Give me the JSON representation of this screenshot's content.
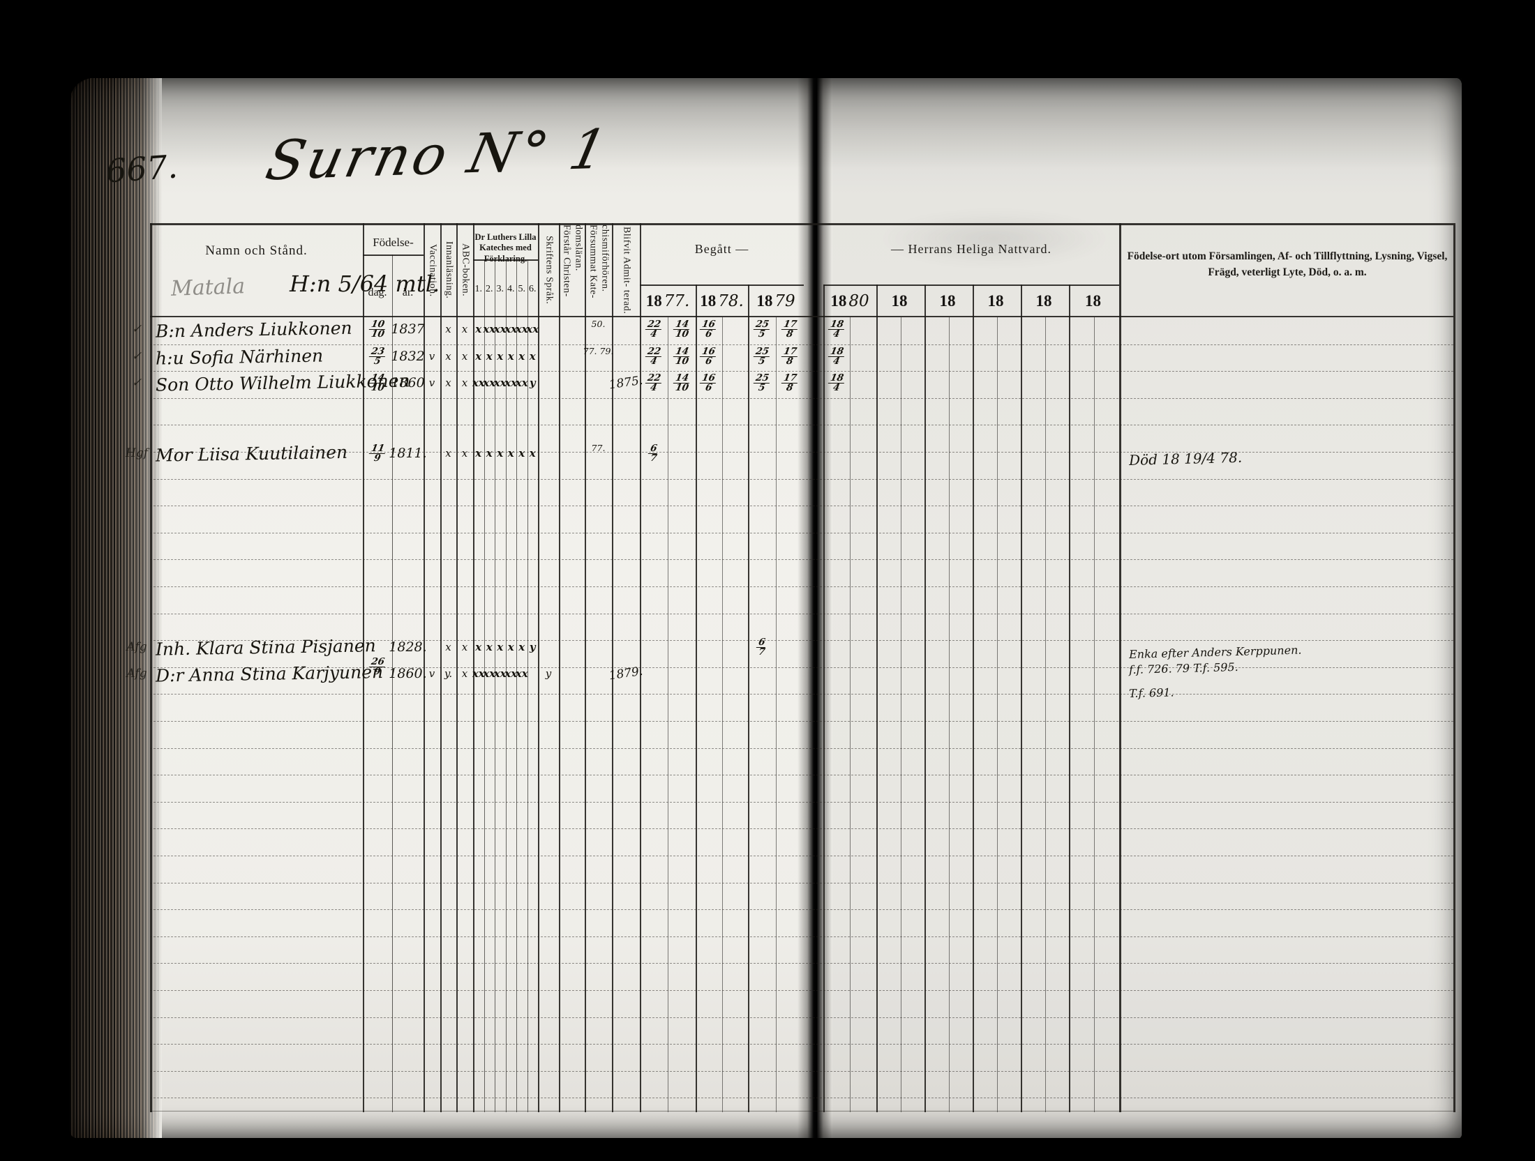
{
  "page": {
    "number": "667.",
    "title": "Surno N° 1"
  },
  "estate": {
    "pencil": "Matala",
    "ink": "H:n 5/64 mtl."
  },
  "table": {
    "headers": {
      "namn": "Namn och Stånd.",
      "fodelse": "Födelse-",
      "dag": "dag.",
      "ar": "år.",
      "vaccination": "Vaccination.",
      "innanlasning": "Innanläsning.",
      "abc": "ABC-boken.",
      "katekes": "Dr Luthers Lilla Kateches med Förklaring.",
      "skriftens": "Skriftens Språk.",
      "forstar": "Förstår Christen- domsläran.",
      "forsummat": "Försummat Kate- chismiförhören.",
      "blifvit": "Blifvit Admit- terad.",
      "begatt_left": "Begått   —",
      "begatt_right": "—    Herrans Heliga Nattvard.",
      "right": "Födelse-ort utom Församlingen, Af- och Tillflyttning, Lysning, Vigsel, Frägd, veterligt Lyte, Död, o. a. m."
    },
    "katekes_cols": [
      "1.",
      "2.",
      "3.",
      "4.",
      "5.",
      "6."
    ],
    "year_headers": [
      {
        "printed": "18",
        "written": "77."
      },
      {
        "printed": "18",
        "written": "78."
      },
      {
        "printed": "18",
        "written": "79"
      },
      {
        "printed": "18",
        "written": "80"
      },
      {
        "printed": "18",
        "written": ""
      },
      {
        "printed": "18",
        "written": ""
      },
      {
        "printed": "18",
        "written": ""
      },
      {
        "printed": "18",
        "written": ""
      },
      {
        "printed": "18",
        "written": ""
      }
    ],
    "rows": [
      {
        "margin": "✓",
        "name": "B:n Anders Liukkonen",
        "dag": "10/10",
        "ar": "1837",
        "vacc": "",
        "innan": "x",
        "abc": "x",
        "kat": [
          "x",
          "xx",
          "xx",
          "xx",
          "xx",
          "xx"
        ],
        "skrift": "",
        "forstar": "",
        "forsummat": "50.",
        "blifvit": "",
        "years": [
          [
            "22/4",
            "14/10"
          ],
          [
            "16/6",
            ""
          ],
          [
            "25/5",
            "17/8"
          ],
          [
            "18/4",
            ""
          ],
          [
            "",
            ""
          ],
          [
            "",
            ""
          ],
          [
            "",
            ""
          ],
          [
            "",
            ""
          ],
          [
            "",
            ""
          ]
        ],
        "note_lines": []
      },
      {
        "margin": "✓",
        "name": "h:u Sofia Närhinen",
        "dag": "23/5",
        "ar": "1832",
        "vacc": "v",
        "innan": "x",
        "abc": "x",
        "kat": [
          "x",
          "x",
          "x",
          "x",
          "x",
          "x"
        ],
        "skrift": "",
        "forstar": "",
        "forsummat": "77. 79.",
        "blifvit": "",
        "years": [
          [
            "22/4",
            "14/10"
          ],
          [
            "16/6",
            ""
          ],
          [
            "25/5",
            "17/8"
          ],
          [
            "18/4",
            ""
          ],
          [
            "",
            ""
          ],
          [
            "",
            ""
          ],
          [
            "",
            ""
          ],
          [
            "",
            ""
          ],
          [
            "",
            ""
          ]
        ],
        "note_lines": []
      },
      {
        "margin": "✓",
        "name": "Son Otto Wilhelm Liukkonen",
        "dag": "14/10",
        "ar": "1860",
        "vacc": "v",
        "innan": "x",
        "abc": "x",
        "kat": [
          "xx",
          "xx",
          "xx",
          "xx",
          "xx",
          "y"
        ],
        "skrift": "",
        "forstar": "",
        "forsummat": "",
        "blifvit": "1875.",
        "years": [
          [
            "22/4",
            "14/10"
          ],
          [
            "16/6",
            ""
          ],
          [
            "25/5",
            "17/8"
          ],
          [
            "18/4",
            ""
          ],
          [
            "",
            ""
          ],
          [
            "",
            ""
          ],
          [
            "",
            ""
          ],
          [
            "",
            ""
          ],
          [
            "",
            ""
          ]
        ],
        "note_lines": []
      },
      {
        "margin": "Hgf",
        "name": "Mor Liisa Kuutilainen",
        "dag": "11/9",
        "ar": "1811.",
        "vacc": "",
        "innan": "x",
        "abc": "x",
        "kat": [
          "x",
          "x",
          "x",
          "x",
          "x",
          "x"
        ],
        "skrift": "",
        "forstar": "",
        "forsummat": "77.",
        "blifvit": "",
        "years": [
          [
            "6/7",
            ""
          ],
          [
            "",
            ""
          ],
          [
            "",
            ""
          ],
          [
            "",
            ""
          ],
          [
            "",
            ""
          ],
          [
            "",
            ""
          ],
          [
            "",
            ""
          ],
          [
            "",
            ""
          ],
          [
            "",
            ""
          ]
        ],
        "note_lines": [
          "Död 18 19/4 78."
        ]
      },
      {
        "margin": "Afg",
        "name": "Inh. Klara Stina Pisjanen",
        "dag": "",
        "ar": "1828.",
        "vacc": "",
        "innan": "x",
        "abc": "x",
        "kat": [
          "x",
          "x",
          "x",
          "x",
          "x",
          "y"
        ],
        "skrift": "",
        "forstar": "",
        "forsummat": "",
        "blifvit": "",
        "years": [
          [
            "",
            ""
          ],
          [
            "",
            ""
          ],
          [
            "6/7",
            ""
          ],
          [
            "",
            ""
          ],
          [
            "",
            ""
          ],
          [
            "",
            ""
          ],
          [
            "",
            ""
          ],
          [
            "",
            ""
          ],
          [
            "",
            ""
          ]
        ],
        "note_lines": [
          "Enka efter Anders Kerppunen.",
          "f.f. 726. 79 T.f. 595.",
          "T.f. 691."
        ]
      },
      {
        "margin": "Afg",
        "name": "D:r Anna Stina Karjyunen",
        "dag": "26/9",
        "ar": "1860.",
        "vacc": "v",
        "innan": "y.",
        "abc": "x",
        "kat": [
          "xx",
          "xx",
          "xx",
          "xx",
          "xx",
          ""
        ],
        "skrift": "y",
        "forstar": "",
        "forsummat": "",
        "blifvit": "1879.",
        "years": [
          [
            "",
            ""
          ],
          [
            "",
            ""
          ],
          [
            "",
            ""
          ],
          [
            "",
            ""
          ],
          [
            "",
            ""
          ],
          [
            "",
            ""
          ],
          [
            "",
            ""
          ],
          [
            "",
            ""
          ],
          [
            "",
            ""
          ]
        ],
        "note_lines": []
      }
    ]
  }
}
